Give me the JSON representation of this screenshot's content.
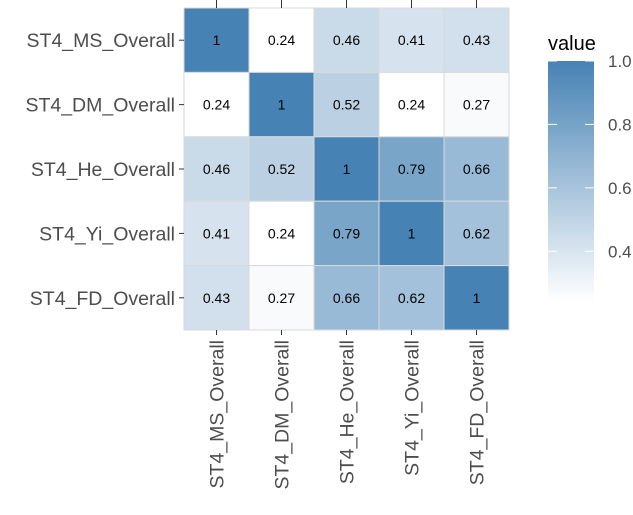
{
  "chart_data": {
    "type": "heatmap",
    "rows": [
      "ST4_MS_Overall",
      "ST4_DM_Overall",
      "ST4_He_Overall",
      "ST4_Yi_Overall",
      "ST4_FD_Overall"
    ],
    "columns": [
      "ST4_MS_Overall",
      "ST4_DM_Overall",
      "ST4_He_Overall",
      "ST4_Yi_Overall",
      "ST4_FD_Overall"
    ],
    "values": [
      [
        1,
        0.24,
        0.46,
        0.41,
        0.43
      ],
      [
        0.24,
        1,
        0.52,
        0.24,
        0.27
      ],
      [
        0.46,
        0.52,
        1,
        0.79,
        0.66
      ],
      [
        0.41,
        0.24,
        0.79,
        1,
        0.62
      ],
      [
        0.43,
        0.27,
        0.66,
        0.62,
        1
      ]
    ],
    "cell_labels": [
      [
        "1",
        "0.24",
        "0.46",
        "0.41",
        "0.43"
      ],
      [
        "0.24",
        "1",
        "0.52",
        "0.24",
        "0.27"
      ],
      [
        "0.46",
        "0.52",
        "1",
        "0.79",
        "0.66"
      ],
      [
        "0.41",
        "0.24",
        "0.79",
        "1",
        "0.62"
      ],
      [
        "0.43",
        "0.27",
        "0.66",
        "0.62",
        "1"
      ]
    ],
    "legend": {
      "title": "value",
      "ticks": [
        {
          "value": 1.0,
          "label": "1.0"
        },
        {
          "value": 0.8,
          "label": "0.8"
        },
        {
          "value": 0.6,
          "label": "0.6"
        },
        {
          "value": 0.4,
          "label": "0.4"
        }
      ],
      "range": [
        0.24,
        1.0
      ],
      "low_color": "#ffffff",
      "high_color": "#4682b4",
      "placement": "right"
    },
    "colors": {
      "low": "#ffffff",
      "high": "#4682b4",
      "cell_border": "#d9d9d9",
      "panel_background": "#ebebeb"
    },
    "grid": true
  }
}
